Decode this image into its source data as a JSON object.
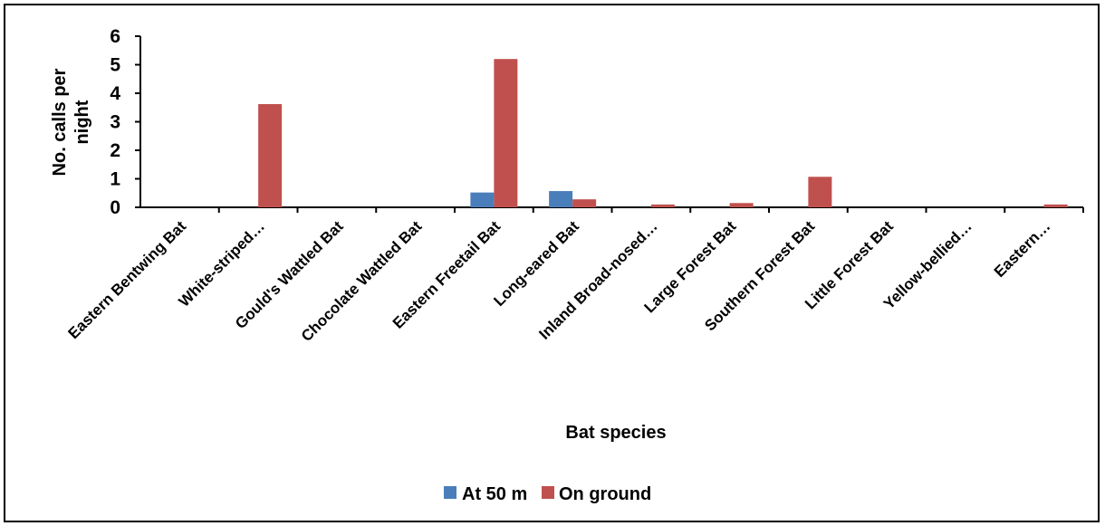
{
  "chart_data": {
    "type": "bar",
    "title": "",
    "xlabel": "Bat species",
    "ylabel": "No. calls per night",
    "ylabel_lines": [
      "No. calls per",
      "night"
    ],
    "ylim": [
      0,
      6
    ],
    "yticks": [
      "0",
      "1",
      "2",
      "3",
      "4",
      "5",
      "6"
    ],
    "grid": false,
    "legend_position": "bottom",
    "categories": [
      "Eastern Bentwing Bat",
      "White-striped…",
      "Gould's Wattled Bat",
      "Chocolate Wattled Bat",
      "Eastern Freetail Bat",
      "Long-eared Bat",
      "Inland Broad-nosed…",
      "Large Forest Bat",
      "Southern Forest Bat",
      "Little Forest Bat",
      "Yellow-bellied…",
      "Eastern…"
    ],
    "series": [
      {
        "name": "At 50 m",
        "color": "#4a7ebb",
        "values": [
          0,
          0,
          0,
          0,
          0.52,
          0.57,
          0,
          0,
          0,
          0,
          0,
          0
        ]
      },
      {
        "name": "On ground",
        "color": "#c0504d",
        "values": [
          0,
          3.62,
          0,
          0,
          5.2,
          0.28,
          0.1,
          0.15,
          1.07,
          0,
          0,
          0.1
        ]
      }
    ]
  }
}
